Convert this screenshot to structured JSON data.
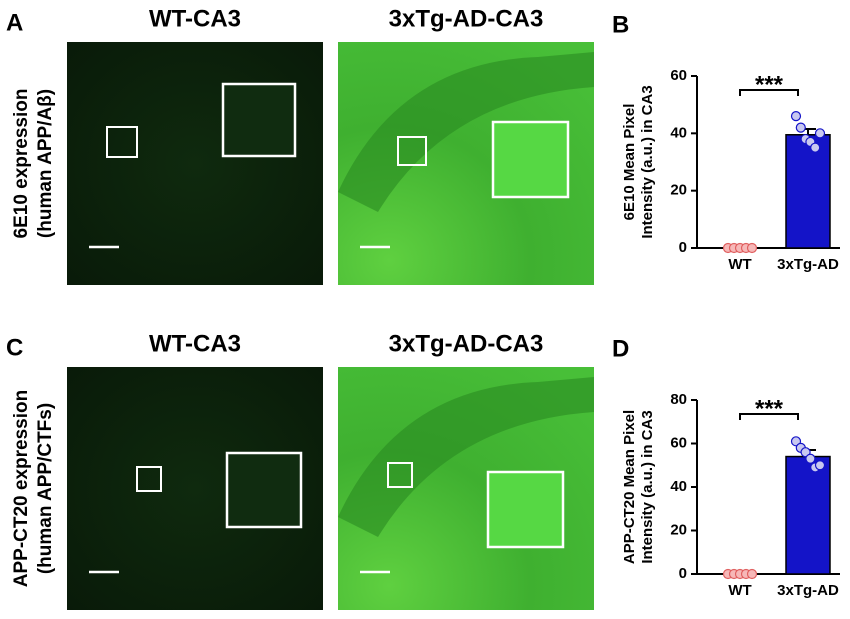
{
  "figure": {
    "rows": [
      {
        "panel": "A",
        "label": [
          "6E10 expression",
          "(human APP/Aβ)"
        ],
        "images": [
          "WT-CA3",
          "3xTg-AD-CA3"
        ]
      },
      {
        "panel": "C",
        "label": [
          "APP-CT20 expression",
          "(human APP/CTFs)"
        ],
        "images": [
          "WT-CA3",
          "3xTg-AD-CA3"
        ]
      }
    ]
  },
  "chart_data": [
    {
      "type": "bar",
      "panel": "B",
      "ylabel": [
        "6E10 Mean Pixel",
        "Intensity (a.u.) in CA3"
      ],
      "categories": [
        "WT",
        "3xTg-AD"
      ],
      "values": [
        0,
        39.5
      ],
      "errors": [
        0,
        2
      ],
      "points": [
        [
          0,
          0,
          0,
          0,
          0
        ],
        [
          46,
          42,
          38,
          37,
          35,
          40
        ]
      ],
      "colors": [
        "#e06060",
        "#1414c8"
      ],
      "point_colors": [
        "#f6b8b8",
        "#c8c8f0"
      ],
      "significance": "***",
      "ylim": [
        0,
        60
      ],
      "yticks": [
        0,
        20,
        40,
        60
      ]
    },
    {
      "type": "bar",
      "panel": "D",
      "ylabel": [
        "APP-CT20 Mean Pixel",
        "Intensity (a.u.) in CA3"
      ],
      "categories": [
        "WT",
        "3xTg-AD"
      ],
      "values": [
        0,
        54
      ],
      "errors": [
        0,
        3
      ],
      "points": [
        [
          0,
          0,
          0,
          0,
          0
        ],
        [
          61,
          58,
          56,
          53,
          49,
          50
        ]
      ],
      "colors": [
        "#e06060",
        "#1414c8"
      ],
      "point_colors": [
        "#f6b8b8",
        "#c8c8f0"
      ],
      "significance": "***",
      "ylim": [
        0,
        80
      ],
      "yticks": [
        0,
        20,
        40,
        60,
        80
      ]
    }
  ]
}
